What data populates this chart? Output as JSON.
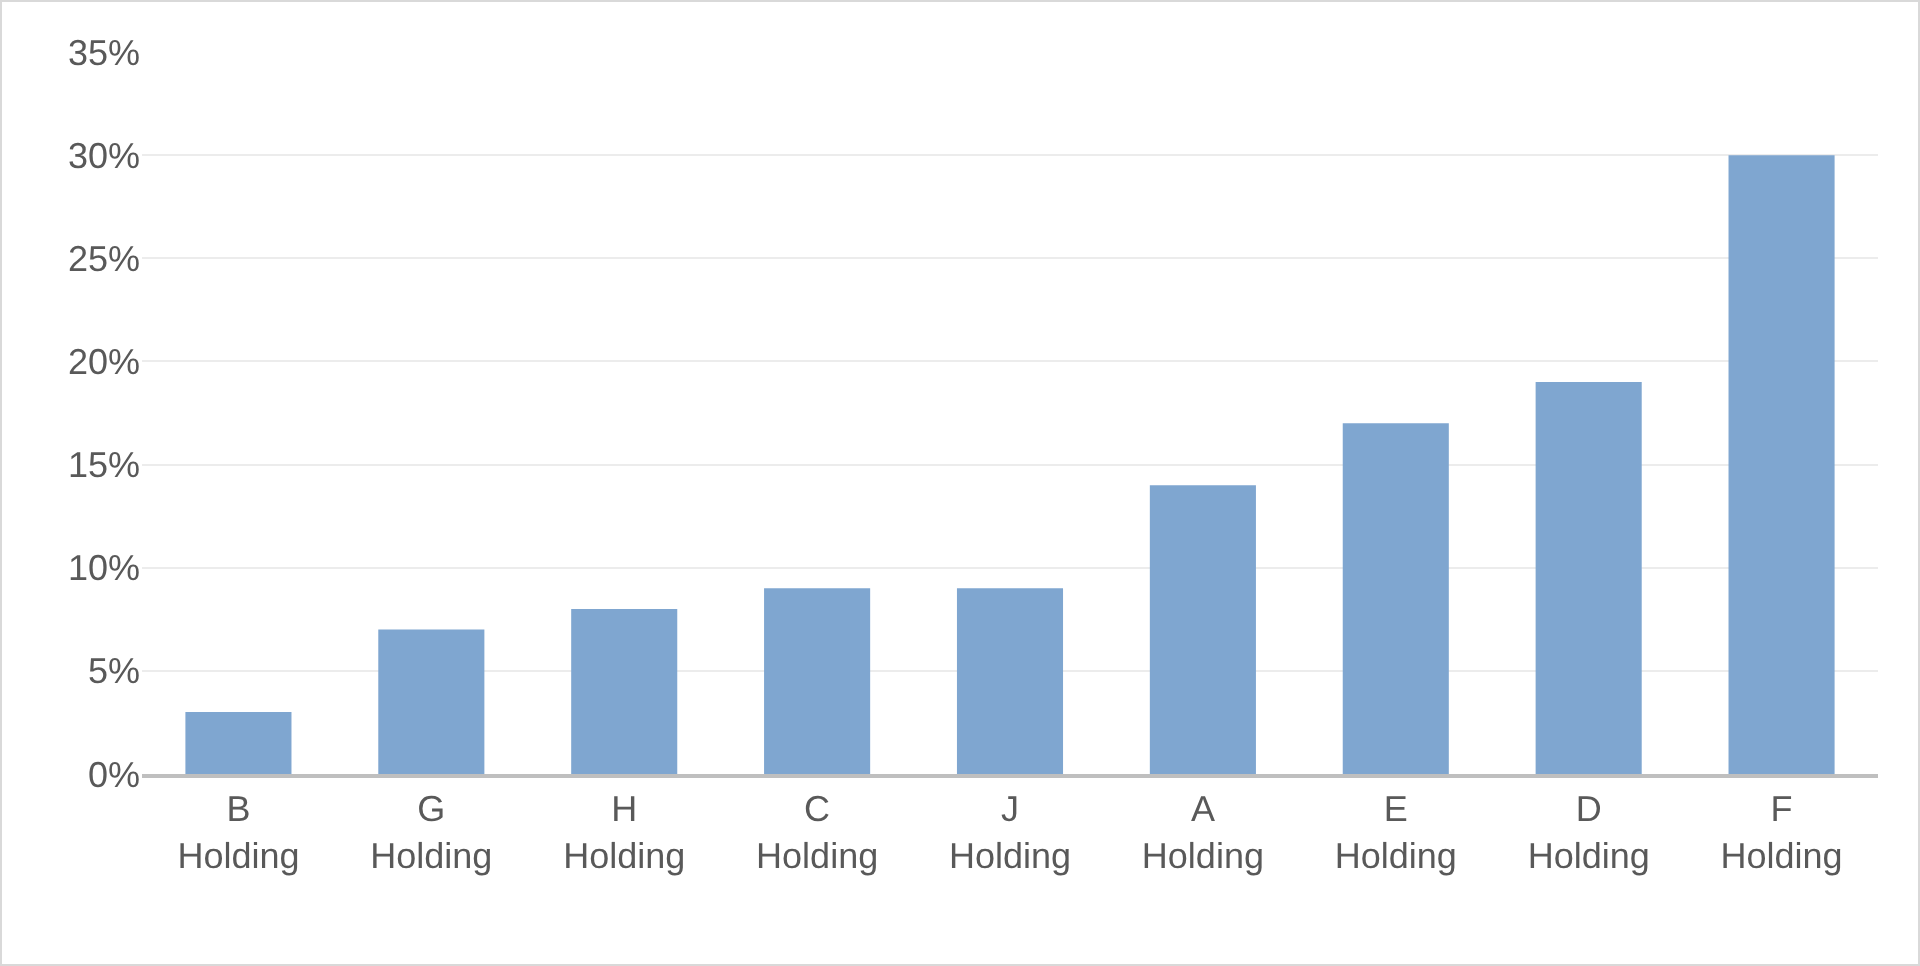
{
  "chart_data": {
    "type": "bar",
    "categories": [
      "B Holding",
      "G Holding",
      "H Holding",
      "C Holding",
      "J Holding",
      "A Holding",
      "E Holding",
      "D Holding",
      "F Holding"
    ],
    "values": [
      3,
      7,
      8,
      9,
      9,
      14,
      17,
      19,
      30
    ],
    "color": "#7fa6d0",
    "ylim": [
      0,
      35
    ],
    "yticks": [
      {
        "value": 0,
        "label": "0%"
      },
      {
        "value": 5,
        "label": "5%"
      },
      {
        "value": 10,
        "label": "10%"
      },
      {
        "value": 15,
        "label": "15%"
      },
      {
        "value": 20,
        "label": "20%"
      },
      {
        "value": 25,
        "label": "25%"
      },
      {
        "value": 30,
        "label": "30%"
      },
      {
        "value": 35,
        "label": "35%"
      }
    ],
    "grid": "y"
  }
}
